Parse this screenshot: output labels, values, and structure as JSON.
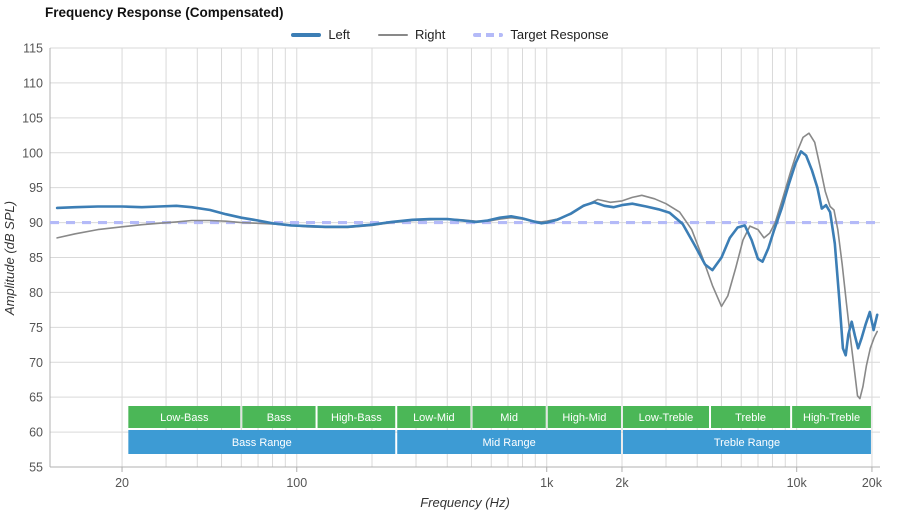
{
  "title": "Frequency Response (Compensated)",
  "legend": [
    {
      "label": "Left",
      "color": "#3c7eb5",
      "style": "solid",
      "width": 4
    },
    {
      "label": "Right",
      "color": "#898989",
      "style": "solid",
      "width": 2
    },
    {
      "label": "Target Response",
      "color": "#b4baf8",
      "style": "dashed",
      "width": 4
    }
  ],
  "chart_data": {
    "type": "line",
    "title": "Frequency Response (Compensated)",
    "xlabel": "Frequency (Hz)",
    "ylabel": "Amplitude (dB SPL)",
    "x_scale": "log",
    "grid": true,
    "legend_position": "top-center",
    "xlim": [
      10.3,
      21540
    ],
    "ylim": [
      55,
      115
    ],
    "y_ticks": [
      55,
      60,
      65,
      70,
      75,
      80,
      85,
      90,
      95,
      100,
      105,
      110,
      115
    ],
    "x_gridlines": [
      20,
      30,
      40,
      50,
      60,
      70,
      80,
      90,
      100,
      200,
      300,
      400,
      500,
      600,
      700,
      800,
      900,
      1000,
      2000,
      3000,
      4000,
      5000,
      6000,
      7000,
      8000,
      9000,
      10000,
      20000
    ],
    "x_ticks": [
      {
        "value": 20,
        "label": "20"
      },
      {
        "value": 100,
        "label": "100"
      },
      {
        "value": 1000,
        "label": "1k"
      },
      {
        "value": 2000,
        "label": "2k"
      },
      {
        "value": 10000,
        "label": "10k"
      },
      {
        "value": 20000,
        "label": "20k"
      }
    ],
    "target": {
      "label": "Target Response",
      "value": 90,
      "color": "#b4baf8"
    },
    "series": [
      {
        "name": "Left",
        "color": "#3c7eb5",
        "width": 2.6,
        "points": [
          [
            11,
            92.1
          ],
          [
            13,
            92.2
          ],
          [
            16,
            92.3
          ],
          [
            20,
            92.3
          ],
          [
            24,
            92.2
          ],
          [
            28,
            92.3
          ],
          [
            33,
            92.4
          ],
          [
            38,
            92.2
          ],
          [
            45,
            91.8
          ],
          [
            52,
            91.2
          ],
          [
            60,
            90.7
          ],
          [
            70,
            90.3
          ],
          [
            80,
            89.9
          ],
          [
            95,
            89.6
          ],
          [
            110,
            89.5
          ],
          [
            130,
            89.4
          ],
          [
            160,
            89.4
          ],
          [
            200,
            89.7
          ],
          [
            240,
            90.1
          ],
          [
            290,
            90.4
          ],
          [
            340,
            90.5
          ],
          [
            400,
            90.5
          ],
          [
            460,
            90.3
          ],
          [
            520,
            90.1
          ],
          [
            580,
            90.3
          ],
          [
            650,
            90.7
          ],
          [
            720,
            90.9
          ],
          [
            800,
            90.6
          ],
          [
            880,
            90.2
          ],
          [
            950,
            89.9
          ],
          [
            1000,
            90.0
          ],
          [
            1100,
            90.4
          ],
          [
            1250,
            91.3
          ],
          [
            1400,
            92.4
          ],
          [
            1550,
            92.9
          ],
          [
            1700,
            92.4
          ],
          [
            1850,
            92.2
          ],
          [
            2000,
            92.5
          ],
          [
            2200,
            92.7
          ],
          [
            2500,
            92.3
          ],
          [
            2800,
            91.9
          ],
          [
            3100,
            91.4
          ],
          [
            3500,
            89.8
          ],
          [
            3900,
            86.8
          ],
          [
            4300,
            84.0
          ],
          [
            4600,
            83.2
          ],
          [
            5000,
            85.0
          ],
          [
            5400,
            87.8
          ],
          [
            5800,
            89.3
          ],
          [
            6200,
            89.6
          ],
          [
            6600,
            87.5
          ],
          [
            7000,
            84.8
          ],
          [
            7300,
            84.4
          ],
          [
            7700,
            86.3
          ],
          [
            8100,
            88.8
          ],
          [
            8700,
            92.0
          ],
          [
            9300,
            95.5
          ],
          [
            9900,
            98.5
          ],
          [
            10400,
            100.2
          ],
          [
            10900,
            99.6
          ],
          [
            11500,
            97.5
          ],
          [
            12100,
            95.0
          ],
          [
            12600,
            92.0
          ],
          [
            13100,
            92.5
          ],
          [
            13600,
            91.5
          ],
          [
            14200,
            87.0
          ],
          [
            14800,
            79.0
          ],
          [
            15300,
            72.0
          ],
          [
            15700,
            71.0
          ],
          [
            16100,
            74.0
          ],
          [
            16600,
            75.8
          ],
          [
            17100,
            73.8
          ],
          [
            17600,
            72.0
          ],
          [
            18200,
            73.5
          ],
          [
            18900,
            75.5
          ],
          [
            19600,
            77.2
          ],
          [
            20300,
            74.6
          ],
          [
            21000,
            76.8
          ]
        ]
      },
      {
        "name": "Right",
        "color": "#898989",
        "width": 1.6,
        "points": [
          [
            11,
            87.8
          ],
          [
            13,
            88.4
          ],
          [
            16,
            89.0
          ],
          [
            20,
            89.4
          ],
          [
            24,
            89.7
          ],
          [
            28,
            89.9
          ],
          [
            33,
            90.1
          ],
          [
            38,
            90.3
          ],
          [
            45,
            90.3
          ],
          [
            52,
            90.2
          ],
          [
            60,
            90.0
          ],
          [
            70,
            89.9
          ],
          [
            80,
            89.8
          ],
          [
            95,
            89.6
          ],
          [
            110,
            89.4
          ],
          [
            130,
            89.3
          ],
          [
            160,
            89.3
          ],
          [
            200,
            89.6
          ],
          [
            240,
            90.0
          ],
          [
            290,
            90.3
          ],
          [
            340,
            90.4
          ],
          [
            400,
            90.5
          ],
          [
            460,
            90.4
          ],
          [
            520,
            90.2
          ],
          [
            580,
            90.2
          ],
          [
            650,
            90.5
          ],
          [
            720,
            90.7
          ],
          [
            800,
            90.5
          ],
          [
            880,
            90.2
          ],
          [
            950,
            90.1
          ],
          [
            1000,
            90.2
          ],
          [
            1100,
            90.5
          ],
          [
            1250,
            91.2
          ],
          [
            1400,
            92.3
          ],
          [
            1600,
            93.3
          ],
          [
            1800,
            92.9
          ],
          [
            2000,
            93.1
          ],
          [
            2200,
            93.6
          ],
          [
            2400,
            93.9
          ],
          [
            2700,
            93.4
          ],
          [
            3000,
            92.7
          ],
          [
            3400,
            91.5
          ],
          [
            3800,
            89.0
          ],
          [
            4200,
            85.0
          ],
          [
            4600,
            81.0
          ],
          [
            5000,
            78.0
          ],
          [
            5300,
            79.5
          ],
          [
            5700,
            83.5
          ],
          [
            6100,
            87.5
          ],
          [
            6500,
            89.5
          ],
          [
            7000,
            89.0
          ],
          [
            7400,
            87.8
          ],
          [
            7800,
            88.5
          ],
          [
            8200,
            90.0
          ],
          [
            8800,
            93.5
          ],
          [
            9400,
            97.0
          ],
          [
            10000,
            100.0
          ],
          [
            10600,
            102.2
          ],
          [
            11200,
            102.8
          ],
          [
            11800,
            101.5
          ],
          [
            12400,
            98.0
          ],
          [
            13000,
            94.5
          ],
          [
            13600,
            92.3
          ],
          [
            14100,
            91.8
          ],
          [
            14600,
            89.0
          ],
          [
            15200,
            84.0
          ],
          [
            15800,
            78.5
          ],
          [
            16400,
            73.5
          ],
          [
            17000,
            69.0
          ],
          [
            17500,
            65.2
          ],
          [
            17900,
            64.8
          ],
          [
            18400,
            66.5
          ],
          [
            19000,
            69.5
          ],
          [
            19700,
            72.0
          ],
          [
            20400,
            73.5
          ],
          [
            21000,
            74.4
          ]
        ]
      }
    ],
    "bands": {
      "sub_color": "#4bb757",
      "main_color": "#3d9bd4",
      "sub": [
        {
          "label": "Low-Bass",
          "from": 21,
          "to": 60
        },
        {
          "label": "Bass",
          "from": 60,
          "to": 120
        },
        {
          "label": "High-Bass",
          "from": 120,
          "to": 250
        },
        {
          "label": "Low-Mid",
          "from": 250,
          "to": 500
        },
        {
          "label": "Mid",
          "from": 500,
          "to": 1000
        },
        {
          "label": "High-Mid",
          "from": 1000,
          "to": 2000
        },
        {
          "label": "Low-Treble",
          "from": 2000,
          "to": 4500
        },
        {
          "label": "Treble",
          "from": 4500,
          "to": 9500
        },
        {
          "label": "High-Treble",
          "from": 9500,
          "to": 20000
        }
      ],
      "main": [
        {
          "label": "Bass Range",
          "from": 21,
          "to": 250
        },
        {
          "label": "Mid Range",
          "from": 250,
          "to": 2000
        },
        {
          "label": "Treble Range",
          "from": 2000,
          "to": 20000
        }
      ]
    }
  }
}
